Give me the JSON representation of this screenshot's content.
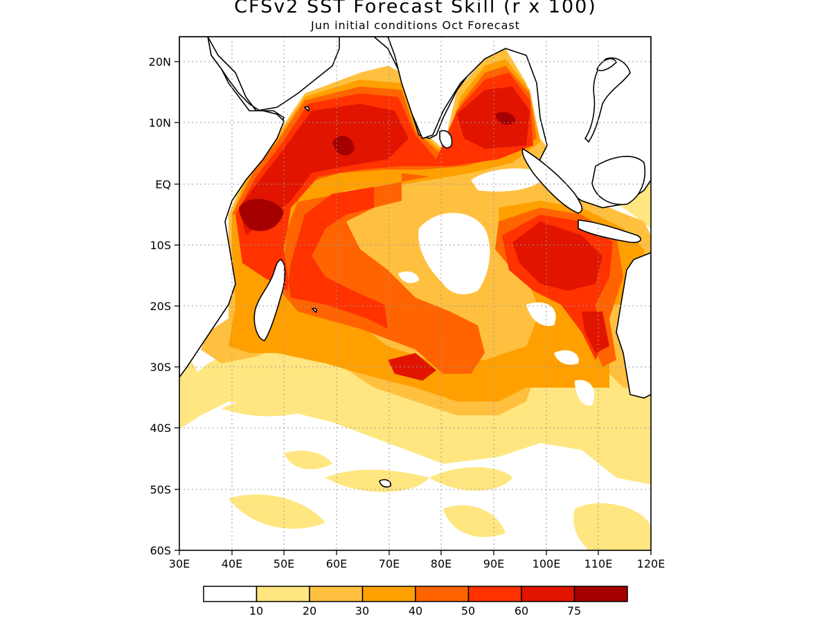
{
  "title": "CFSv2 SST Forecast Skill (r x 100)",
  "subtitle": "Jun initial conditions  Oct Forecast",
  "axes": {
    "lon_ticks": [
      "30E",
      "40E",
      "50E",
      "60E",
      "70E",
      "80E",
      "90E",
      "100E",
      "110E",
      "120E"
    ],
    "lat_ticks": [
      "20N",
      "10N",
      "EQ",
      "10S",
      "20S",
      "30S",
      "40S",
      "50S",
      "60S"
    ],
    "lon_range": [
      30,
      120
    ],
    "lat_range": [
      -60,
      24
    ]
  },
  "colorbar": {
    "labels": [
      "10",
      "20",
      "30",
      "40",
      "50",
      "60",
      "75"
    ],
    "colors": [
      "#ffffff",
      "#ffe680",
      "#ffc040",
      "#ffa000",
      "#ff6400",
      "#ff3200",
      "#e11400",
      "#a50000"
    ]
  },
  "colors": {
    "land": "#ffffff",
    "coast": "#000000",
    "grid": "#9a9a9a"
  }
}
